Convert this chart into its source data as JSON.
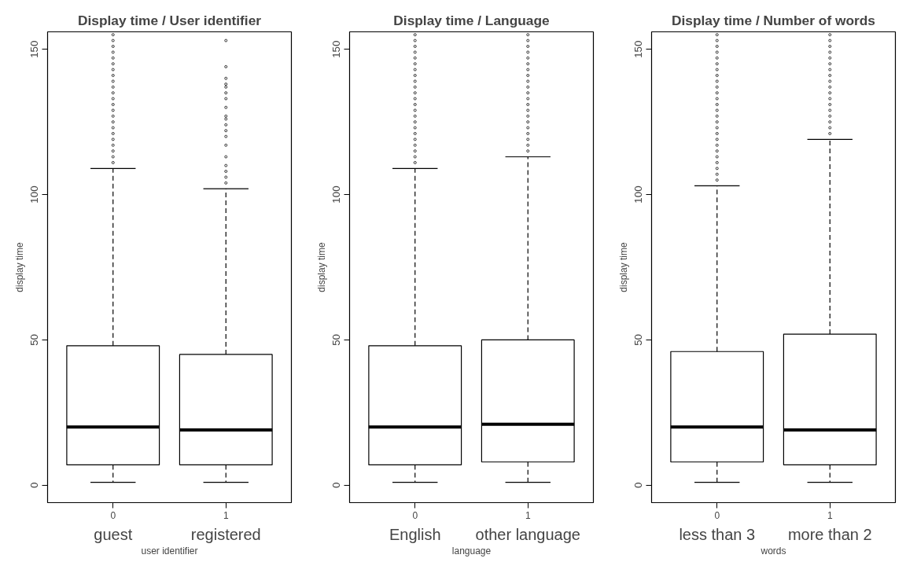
{
  "chart_data": [
    {
      "type": "box",
      "title": "Display time / User identifier",
      "xlabel": "user identifier",
      "ylabel": "display time",
      "categories": [
        "0",
        "1"
      ],
      "annotations": [
        "guest",
        "registered"
      ],
      "ylim": [
        -6,
        156
      ],
      "yticks": [
        0,
        50,
        100,
        150
      ],
      "boxes": [
        {
          "low": 1,
          "q1": 7,
          "median": 20,
          "q3": 48,
          "high": 109,
          "outliers": [
            111,
            113,
            115,
            117,
            119,
            121,
            123,
            125,
            127,
            129,
            131,
            133,
            135,
            137,
            139,
            141,
            143,
            145,
            147,
            149,
            151,
            153,
            155
          ]
        },
        {
          "low": 1,
          "q1": 7,
          "median": 19,
          "q3": 45,
          "high": 102,
          "outliers": [
            104,
            106,
            108,
            110,
            113,
            117,
            120,
            122,
            124,
            126,
            127,
            130,
            133,
            135,
            137,
            138,
            140,
            144,
            153
          ]
        }
      ]
    },
    {
      "type": "box",
      "title": "Display time / Language",
      "xlabel": "language",
      "ylabel": "display time",
      "categories": [
        "0",
        "1"
      ],
      "annotations": [
        "English",
        "other language"
      ],
      "ylim": [
        -6,
        156
      ],
      "yticks": [
        0,
        50,
        100,
        150
      ],
      "boxes": [
        {
          "low": 1,
          "q1": 7,
          "median": 20,
          "q3": 48,
          "high": 109,
          "outliers": [
            111,
            113,
            115,
            117,
            119,
            121,
            123,
            125,
            127,
            129,
            131,
            133,
            135,
            137,
            139,
            141,
            143,
            145,
            147,
            149,
            151,
            153,
            155
          ]
        },
        {
          "low": 1,
          "q1": 8,
          "median": 21,
          "q3": 50,
          "high": 113,
          "outliers": [
            115,
            117,
            119,
            121,
            123,
            125,
            127,
            129,
            131,
            133,
            135,
            137,
            139,
            141,
            143,
            145,
            147,
            149,
            151,
            153,
            155
          ]
        }
      ]
    },
    {
      "type": "box",
      "title": "Display time / Number of words",
      "xlabel": "words",
      "ylabel": "display time",
      "categories": [
        "0",
        "1"
      ],
      "annotations": [
        "less than 3",
        "more than 2"
      ],
      "ylim": [
        -6,
        156
      ],
      "yticks": [
        0,
        50,
        100,
        150
      ],
      "boxes": [
        {
          "low": 1,
          "q1": 8,
          "median": 20,
          "q3": 46,
          "high": 103,
          "outliers": [
            105,
            107,
            109,
            111,
            113,
            115,
            117,
            119,
            121,
            123,
            125,
            127,
            129,
            131,
            133,
            135,
            137,
            139,
            141,
            143,
            145,
            147,
            149,
            151,
            153,
            155
          ]
        },
        {
          "low": 1,
          "q1": 7,
          "median": 19,
          "q3": 52,
          "high": 119,
          "outliers": [
            121,
            123,
            125,
            127,
            129,
            131,
            133,
            135,
            137,
            139,
            141,
            143,
            145,
            147,
            149,
            151,
            153,
            155
          ]
        }
      ]
    }
  ]
}
